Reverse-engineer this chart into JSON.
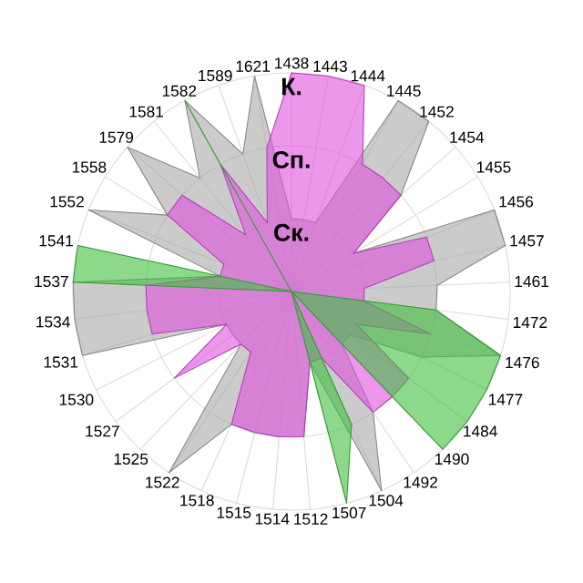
{
  "chart_data": {
    "type": "radar",
    "categories": [
      "1438",
      "1443",
      "1444",
      "1445",
      "1452",
      "1454",
      "1455",
      "1456",
      "1457",
      "1461",
      "1472",
      "1476",
      "1477",
      "1484",
      "1490",
      "1492",
      "1504",
      "1507",
      "1512",
      "1514",
      "1515",
      "1518",
      "1522",
      "1525",
      "1527",
      "1530",
      "1531",
      "1534",
      "1537",
      "1541",
      "1552",
      "1558",
      "1579",
      "1581",
      "1582",
      "1589",
      "1621"
    ],
    "series": [
      {
        "color": "#a8a8a8",
        "values": [
          1,
          1,
          1,
          3,
          3,
          2,
          1,
          3,
          3,
          2,
          2,
          3,
          2,
          1,
          1,
          2,
          3,
          1,
          2,
          2,
          2,
          2,
          3,
          1,
          1,
          1,
          3,
          3,
          3,
          1,
          3,
          2,
          3,
          2,
          3,
          2,
          3
        ]
      },
      {
        "color": "#e050e0",
        "values": [
          3,
          3,
          3,
          2,
          2,
          2,
          1,
          2,
          2,
          1,
          1,
          2,
          1,
          2,
          2,
          2,
          1,
          1,
          2,
          2,
          2,
          2,
          1,
          1,
          2,
          1,
          2,
          2,
          2,
          1,
          1,
          2,
          2,
          1,
          2,
          1,
          2
        ]
      },
      {
        "color": "#40c040",
        "values": [
          0,
          0,
          0,
          0,
          0,
          0,
          0,
          0,
          0,
          0,
          2,
          3,
          3,
          3,
          3,
          0,
          2,
          3,
          0,
          0,
          0,
          0,
          0,
          0,
          0,
          0,
          0,
          0,
          3,
          3,
          0,
          0,
          0,
          0,
          3,
          0,
          0
        ]
      }
    ],
    "ylim": [
      0,
      3
    ],
    "yticks": [
      {
        "value": 1,
        "label": "Ск."
      },
      {
        "value": 2,
        "label": "Сп."
      },
      {
        "value": 3,
        "label": "К."
      }
    ],
    "grid": true,
    "marker": "none",
    "line_style": "solid"
  }
}
